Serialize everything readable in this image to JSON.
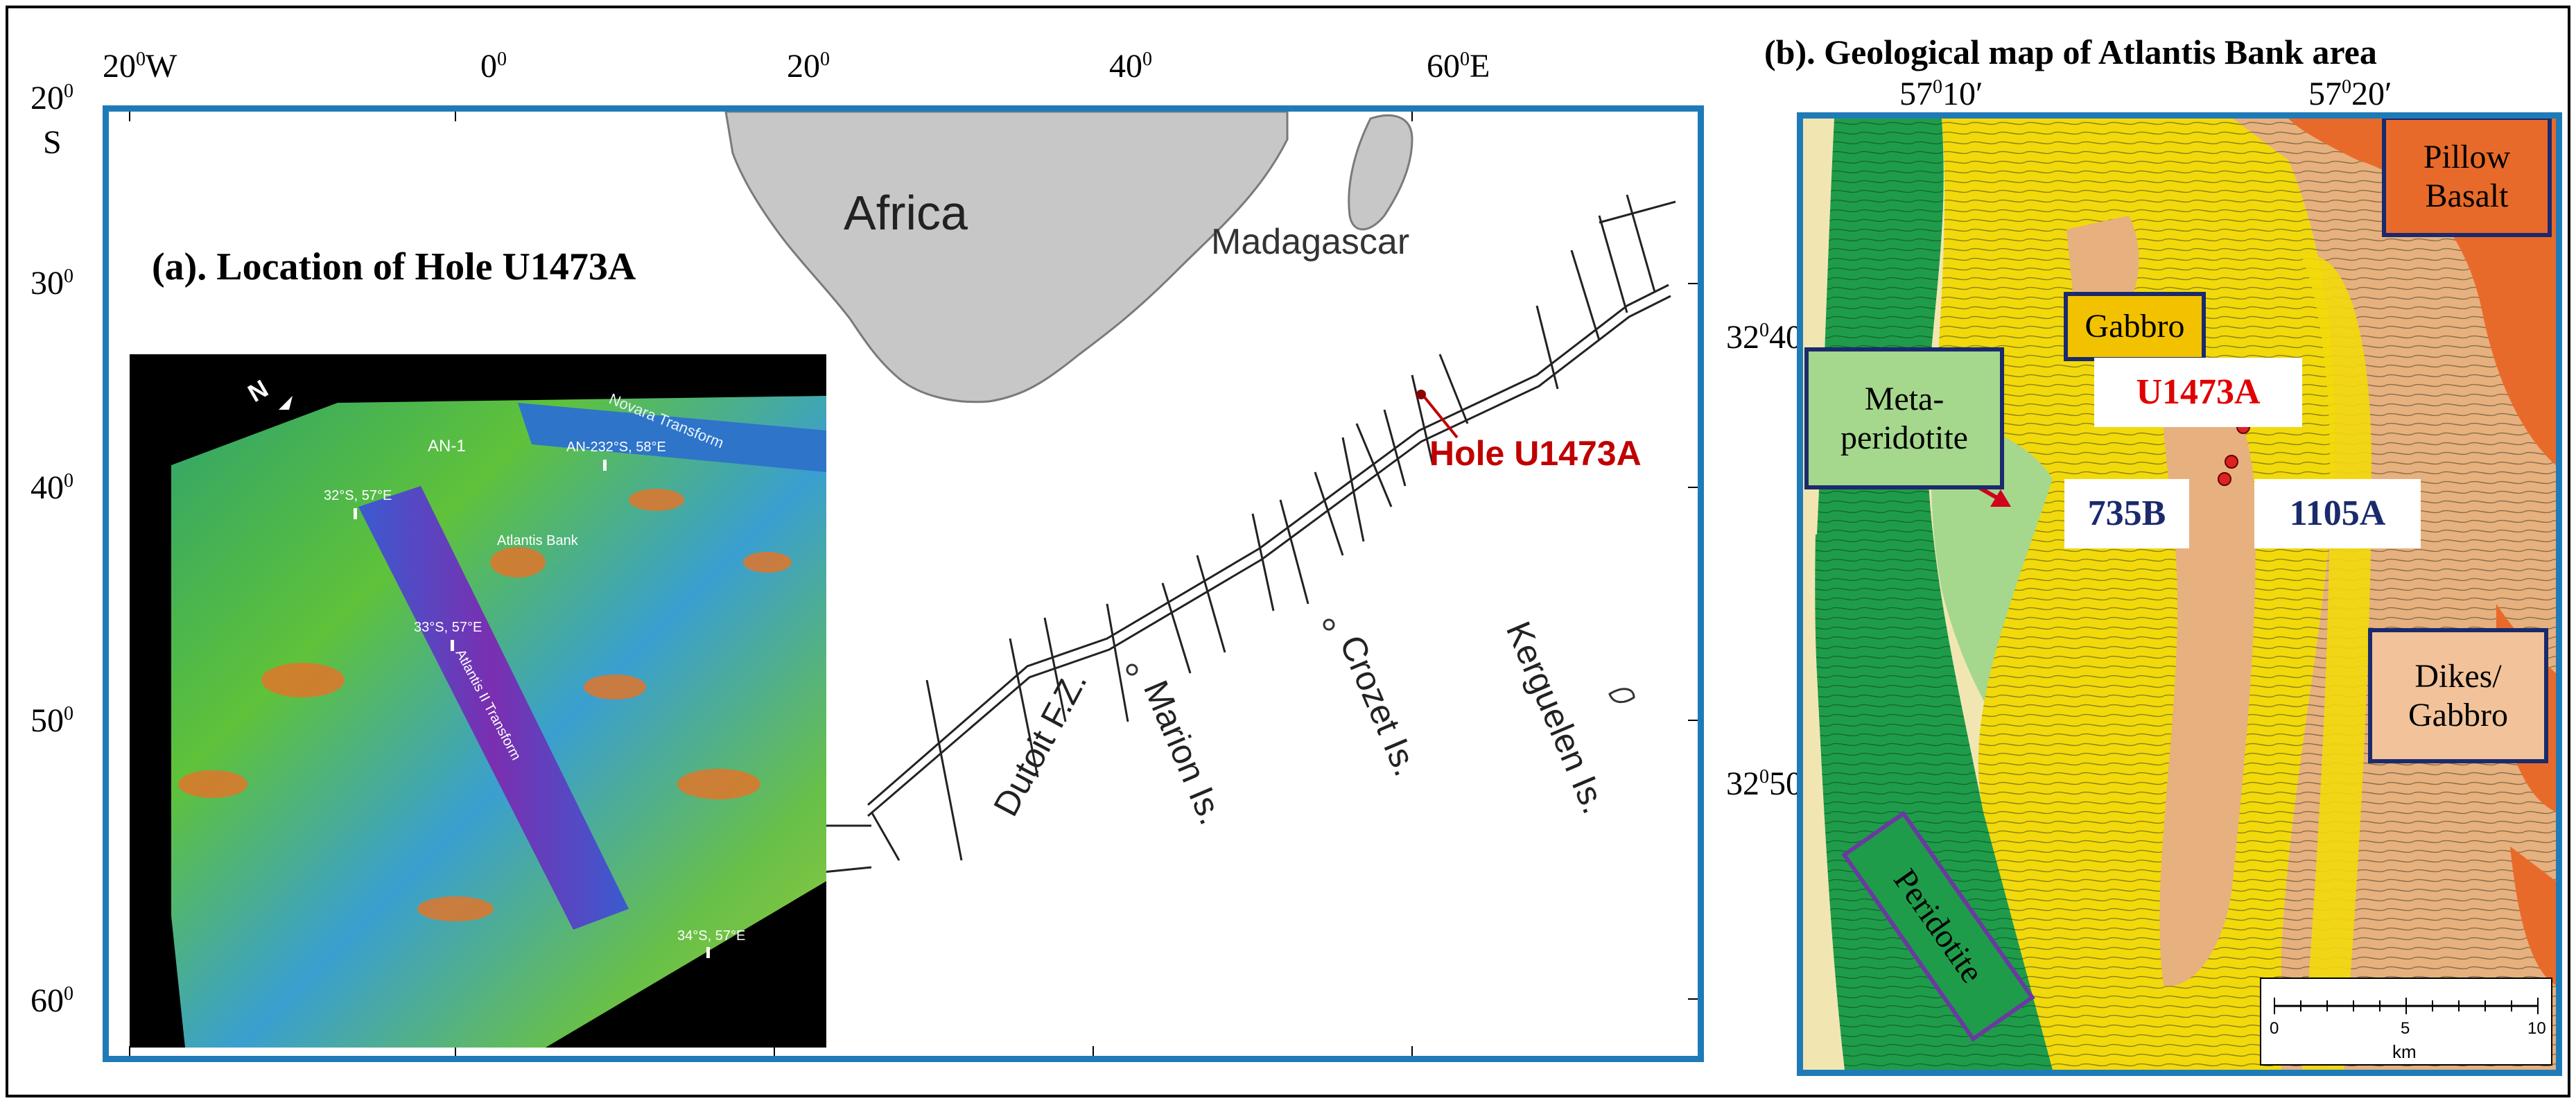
{
  "panel_a": {
    "title": "(a). Location of Hole U1473A",
    "top_longitudes": [
      "20",
      "W",
      "0",
      "20",
      "40",
      "60",
      "E"
    ],
    "left_latitudes": [
      "20",
      "S",
      "30",
      "40",
      "50",
      "60"
    ],
    "degree_mark": "0",
    "land_labels": [
      "Africa",
      "Madagascar"
    ],
    "features": [
      "Dutoit F.Z.",
      "Marion Is.",
      "Crozet Is.",
      "Kerguelen Is."
    ],
    "hole_label": "Hole U1473A",
    "inset": {
      "north_mark": "N",
      "labels": [
        "Novara Transform",
        "AN-1",
        "AN-232°S, 58°E",
        "32°S, 57°E",
        "Atlantis Bank",
        "33°S, 57°E",
        "Atlantis II Transform",
        "34°S, 57°E"
      ]
    }
  },
  "panel_b": {
    "title": "(b). Geological map of Atlantis Bank area",
    "top_longitudes": [
      "57",
      "10′",
      "57",
      "20′"
    ],
    "left_latitudes": [
      "32",
      "40′",
      "32",
      "50′"
    ],
    "units": {
      "pillow_basalt": "Pillow Basalt",
      "gabbro": "Gabbro",
      "meta_peridotite": "Meta-peridotite",
      "dikes_gabbro": "Dikes/ Gabbro",
      "peridotite": "Peridotite"
    },
    "holes": {
      "u1473a": "U1473A",
      "h735b": "735B",
      "h1105a": "1105A"
    },
    "scale_bar": {
      "ticks": [
        "0",
        "5",
        "10"
      ],
      "unit": "km"
    }
  },
  "colors": {
    "frame_blue": "#1f7bb8",
    "hole_red": "#c00000",
    "hole_navy": "#1a2a6c",
    "peridotite_green": "#1f9c4a",
    "gabbro_yellow": "#f2d90b",
    "dikes_tan": "#e7b07f",
    "pillow_orange": "#e86a2a",
    "meta_green": "#a5d78d"
  }
}
